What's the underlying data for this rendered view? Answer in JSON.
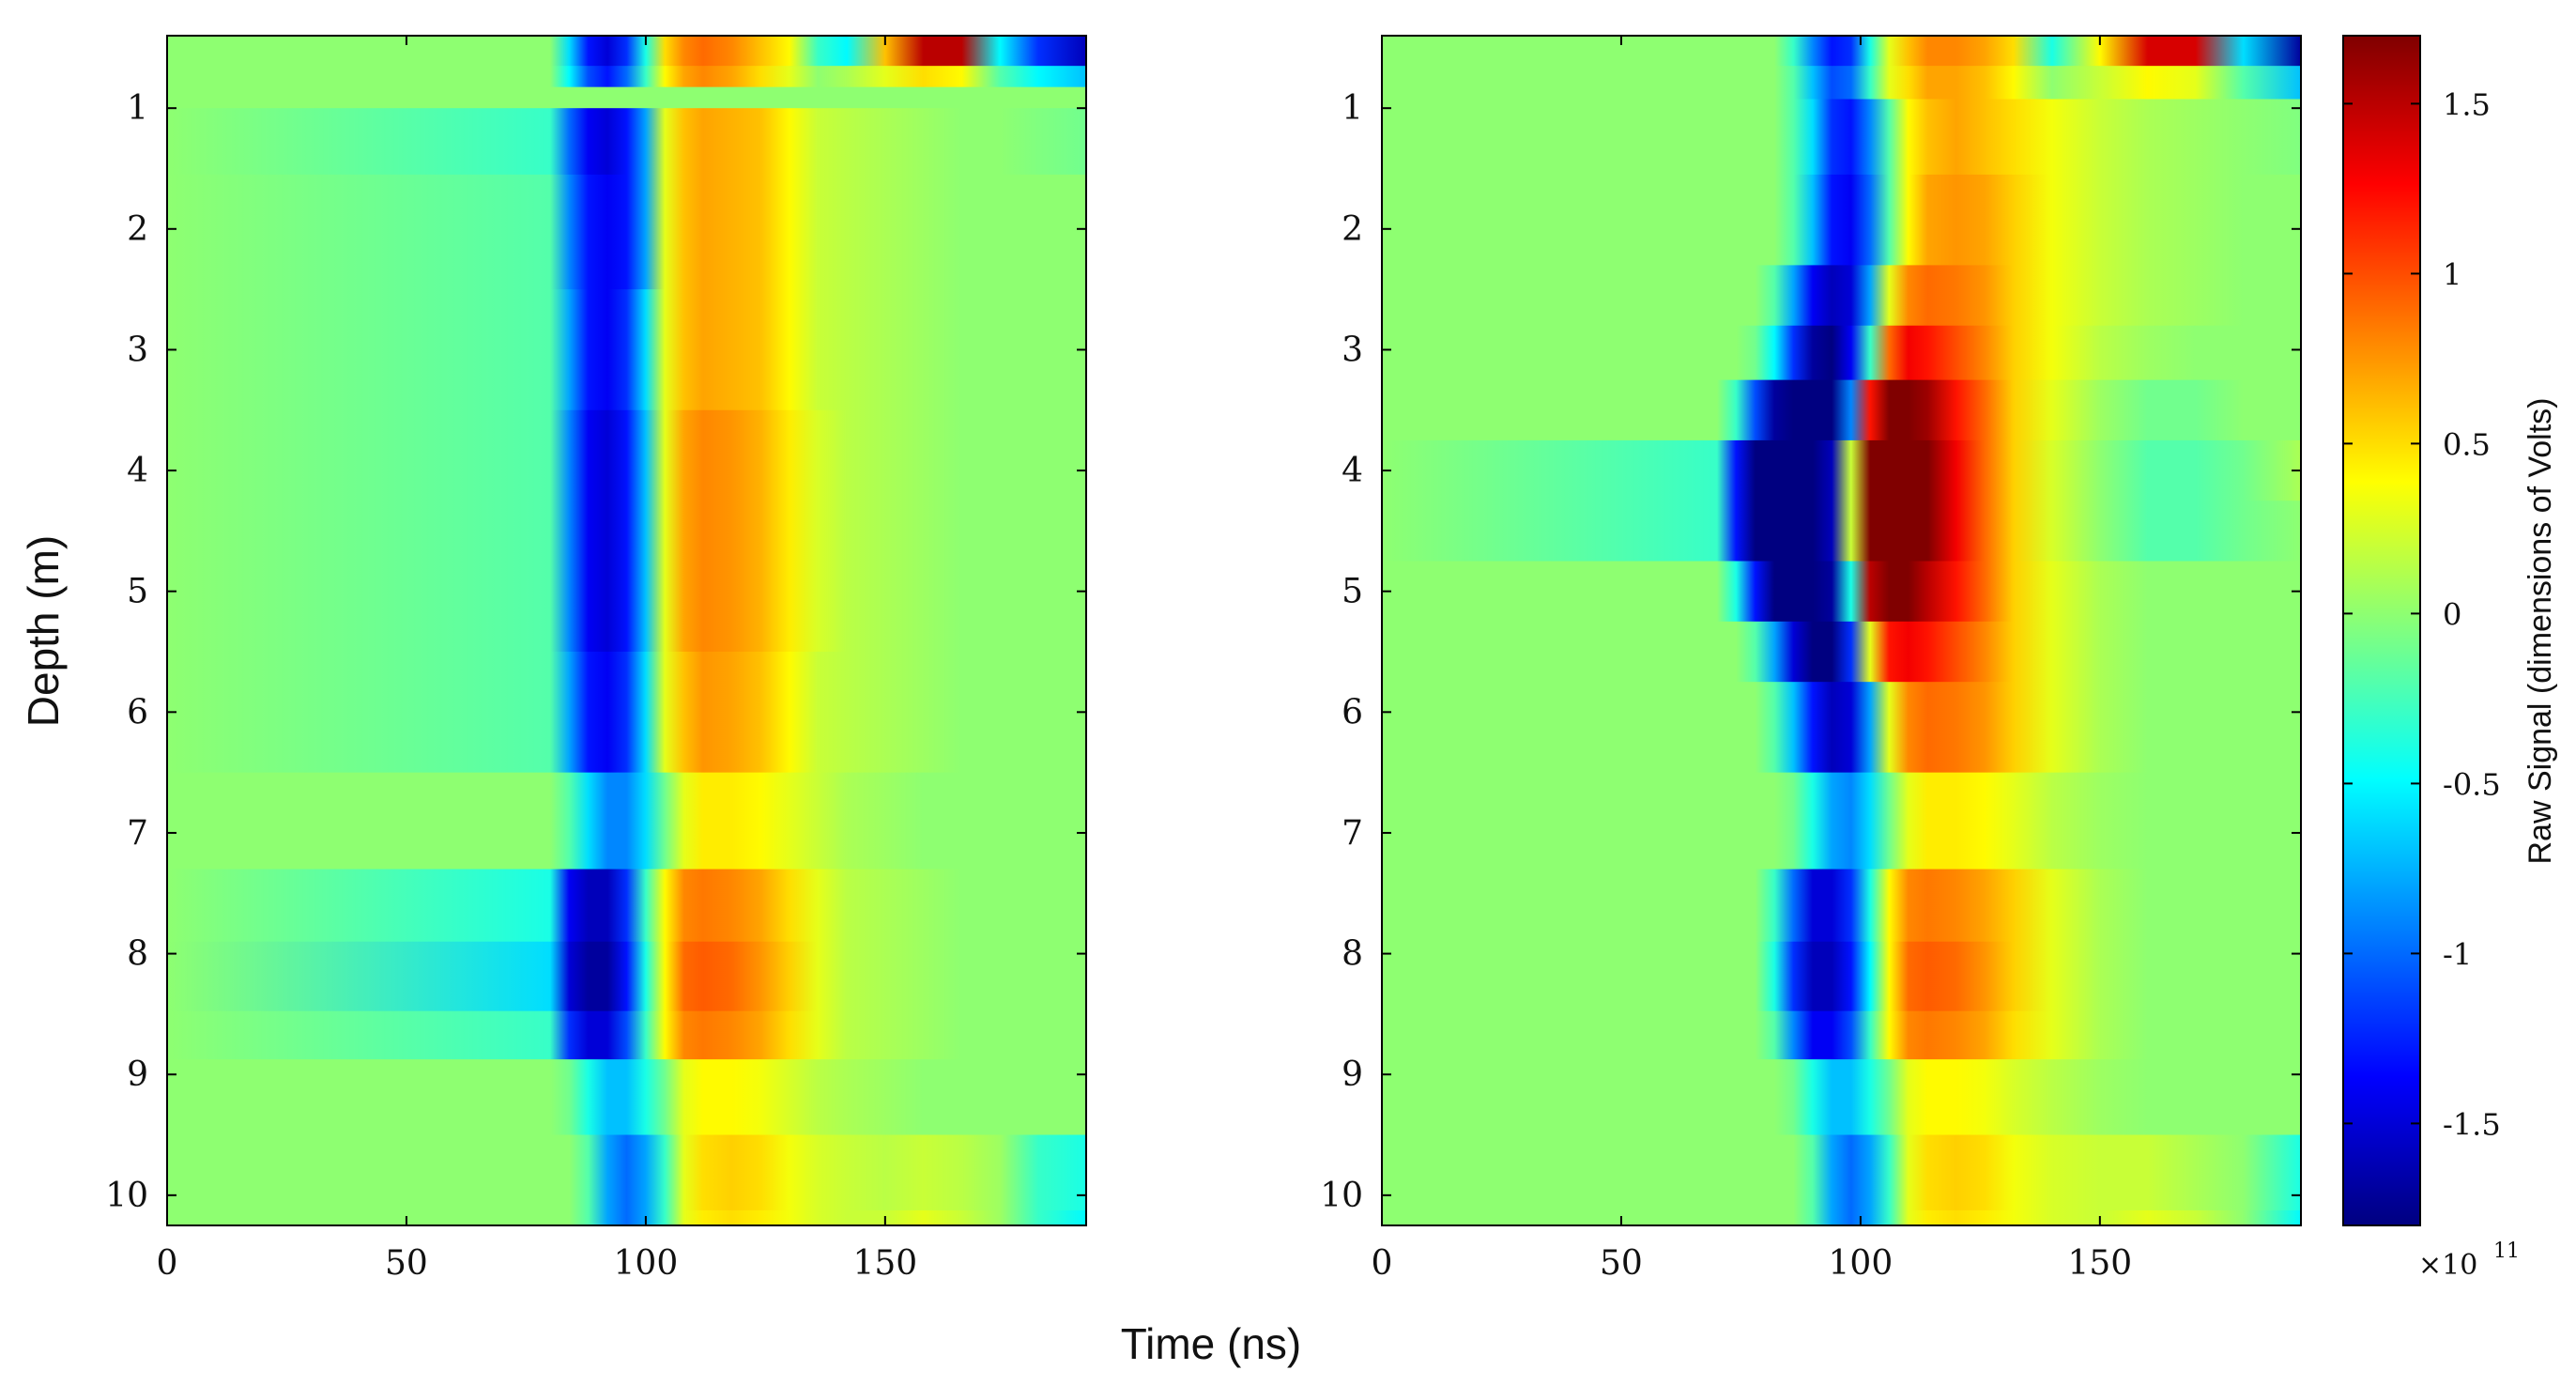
{
  "chart_data": [
    {
      "type": "heatmap",
      "panel": "left",
      "title": "",
      "xlabel": "Time (ns)",
      "ylabel": "Depth (m)",
      "xlim": [
        0,
        192
      ],
      "ylim": [
        0.4,
        10.25
      ],
      "y_reversed": true,
      "xticks": [
        0,
        50,
        100,
        150
      ],
      "yticks": [
        1,
        2,
        3,
        4,
        5,
        6,
        7,
        8,
        9,
        10
      ],
      "x_sampled": [
        0,
        80,
        84,
        88,
        92,
        96,
        100,
        104,
        108,
        112,
        118,
        124,
        130,
        136,
        142,
        150,
        158,
        166,
        174,
        182,
        192
      ],
      "depth_rows": [
        {
          "depth": 0.55,
          "values": [
            0,
            0,
            -0.6,
            -1.3,
            -1.5,
            -1.2,
            -0.4,
            0.5,
            0.8,
            0.9,
            0.8,
            0.6,
            0.4,
            -0.3,
            -0.5,
            0.6,
            1.5,
            1.5,
            -0.5,
            -1.2,
            -1.6
          ]
        },
        {
          "depth": 0.75,
          "values": [
            0,
            0,
            -0.5,
            -1.1,
            -1.3,
            -1.0,
            -0.3,
            0.4,
            0.7,
            0.8,
            0.7,
            0.5,
            0.3,
            0.0,
            0.1,
            0.3,
            0.5,
            0.4,
            -0.2,
            -0.5,
            -0.7
          ]
        },
        {
          "depth": 0.9,
          "values": [
            0,
            0,
            0,
            0,
            0,
            0,
            0,
            0,
            0,
            0,
            0,
            0,
            0,
            0,
            0,
            0,
            0,
            0,
            0,
            0,
            0
          ]
        },
        {
          "depth": 1.1,
          "values": [
            0,
            -0.3,
            -1.0,
            -1.4,
            -1.5,
            -1.3,
            -0.8,
            0.3,
            0.6,
            0.7,
            0.65,
            0.6,
            0.4,
            0.2,
            0.15,
            0.1,
            0.05,
            0,
            0,
            -0.05,
            -0.1
          ]
        },
        {
          "depth": 2.0,
          "values": [
            0,
            -0.2,
            -0.9,
            -1.3,
            -1.4,
            -1.3,
            -0.8,
            0.3,
            0.6,
            0.7,
            0.65,
            0.6,
            0.4,
            0.2,
            0.15,
            0.1,
            0.05,
            0,
            0,
            0,
            0
          ]
        },
        {
          "depth": 3.0,
          "values": [
            0,
            -0.2,
            -0.8,
            -1.3,
            -1.4,
            -1.2,
            -0.6,
            0.3,
            0.6,
            0.7,
            0.65,
            0.6,
            0.4,
            0.2,
            0.15,
            0.1,
            0.05,
            0,
            0,
            0,
            0
          ]
        },
        {
          "depth": 4.0,
          "values": [
            0,
            -0.2,
            -0.9,
            -1.4,
            -1.5,
            -1.3,
            -0.7,
            0.3,
            0.7,
            0.8,
            0.75,
            0.65,
            0.45,
            0.25,
            0.15,
            0.1,
            0.05,
            0,
            0,
            0,
            0
          ]
        },
        {
          "depth": 5.0,
          "values": [
            0,
            -0.2,
            -0.9,
            -1.4,
            -1.5,
            -1.3,
            -0.7,
            0.3,
            0.7,
            0.8,
            0.75,
            0.65,
            0.45,
            0.25,
            0.15,
            0.1,
            0.05,
            0,
            0,
            0,
            0
          ]
        },
        {
          "depth": 6.0,
          "values": [
            0,
            -0.2,
            -0.8,
            -1.3,
            -1.4,
            -1.2,
            -0.6,
            0.3,
            0.6,
            0.75,
            0.7,
            0.6,
            0.4,
            0.2,
            0.15,
            0.1,
            0.05,
            0,
            0,
            0,
            0
          ]
        },
        {
          "depth": 7.0,
          "values": [
            0,
            0,
            -0.2,
            -0.6,
            -0.9,
            -0.9,
            -0.6,
            -0.1,
            0.3,
            0.45,
            0.45,
            0.4,
            0.3,
            0.2,
            0.1,
            0.05,
            0,
            0,
            0,
            0,
            0
          ]
        },
        {
          "depth": 7.6,
          "values": [
            0,
            -0.4,
            -1.4,
            -1.6,
            -1.6,
            -1.2,
            -0.3,
            0.4,
            0.8,
            0.85,
            0.8,
            0.7,
            0.5,
            0.3,
            0.15,
            0.1,
            0.05,
            0,
            0,
            0,
            0
          ]
        },
        {
          "depth": 8.2,
          "values": [
            0,
            -0.6,
            -1.5,
            -1.7,
            -1.7,
            -1.3,
            -0.4,
            0.4,
            0.9,
            0.95,
            0.9,
            0.75,
            0.55,
            0.3,
            0.15,
            0.1,
            0.05,
            0,
            0,
            0,
            0
          ]
        },
        {
          "depth": 8.75,
          "values": [
            0,
            -0.3,
            -1.2,
            -1.5,
            -1.5,
            -1.1,
            -0.3,
            0.4,
            0.8,
            0.85,
            0.8,
            0.7,
            0.5,
            0.3,
            0.15,
            0.1,
            0.05,
            0,
            0,
            0,
            0
          ]
        },
        {
          "depth": 9.0,
          "values": [
            0,
            0,
            -0.1,
            -0.4,
            -0.7,
            -0.7,
            -0.4,
            -0.1,
            0.3,
            0.4,
            0.4,
            0.35,
            0.25,
            0.15,
            0.1,
            0.05,
            0,
            0,
            0,
            0,
            0
          ]
        },
        {
          "depth": 10.0,
          "values": [
            0,
            0,
            0,
            -0.2,
            -0.8,
            -1.0,
            -0.8,
            -0.3,
            0.3,
            0.5,
            0.55,
            0.5,
            0.35,
            0.25,
            0.2,
            0.15,
            0.2,
            0.15,
            0.05,
            -0.3,
            -0.4
          ]
        },
        {
          "depth": 10.25,
          "values": [
            0,
            0,
            0,
            -0.2,
            -0.8,
            -1.0,
            -0.8,
            -0.3,
            0.3,
            0.45,
            0.5,
            0.45,
            0.35,
            0.25,
            0.2,
            0.2,
            0.3,
            0.2,
            0.05,
            -0.3,
            -0.5
          ]
        }
      ]
    },
    {
      "type": "heatmap",
      "panel": "right",
      "title": "",
      "xlabel": "Time (ns)",
      "ylabel": "",
      "xlim": [
        0,
        192
      ],
      "ylim": [
        0.4,
        10.25
      ],
      "y_reversed": true,
      "xticks": [
        0,
        50,
        100,
        150
      ],
      "yticks": [
        1,
        2,
        3,
        4,
        5,
        6,
        7,
        8,
        9,
        10
      ],
      "x_sampled": [
        0,
        70,
        74,
        78,
        82,
        86,
        90,
        94,
        98,
        102,
        106,
        110,
        114,
        120,
        126,
        132,
        140,
        150,
        160,
        170,
        180,
        192
      ],
      "depth_rows": [
        {
          "depth": 0.55,
          "values": [
            0,
            0,
            0,
            0,
            0,
            -0.3,
            -0.9,
            -1.3,
            -1.2,
            -0.4,
            0.3,
            0.6,
            0.8,
            0.8,
            0.7,
            0.5,
            -0.4,
            0.4,
            1.4,
            1.4,
            -0.6,
            -1.7
          ]
        },
        {
          "depth": 0.75,
          "values": [
            0,
            0,
            0,
            0,
            0,
            -0.2,
            -0.7,
            -1.1,
            -1.0,
            -0.3,
            0.3,
            0.5,
            0.7,
            0.7,
            0.6,
            0.4,
            0.0,
            0.2,
            0.4,
            0.3,
            -0.2,
            -0.7
          ]
        },
        {
          "depth": 1.1,
          "values": [
            0,
            0,
            0,
            0,
            0,
            -0.2,
            -0.6,
            -1.2,
            -1.3,
            -0.9,
            -0.2,
            0.4,
            0.6,
            0.7,
            0.6,
            0.5,
            0.35,
            0.2,
            0.1,
            0.05,
            0,
            -0.05
          ]
        },
        {
          "depth": 2.0,
          "values": [
            0,
            0,
            0,
            0,
            0,
            -0.2,
            -0.7,
            -1.3,
            -1.4,
            -1.0,
            -0.2,
            0.4,
            0.7,
            0.75,
            0.7,
            0.55,
            0.35,
            0.2,
            0.1,
            0.05,
            0,
            0
          ]
        },
        {
          "depth": 2.6,
          "values": [
            0,
            0,
            0,
            0,
            -0.2,
            -0.8,
            -1.4,
            -1.6,
            -1.5,
            -0.8,
            0.3,
            0.8,
            0.9,
            0.85,
            0.75,
            0.55,
            0.35,
            0.2,
            0.1,
            0.05,
            0,
            0
          ]
        },
        {
          "depth": 3.0,
          "values": [
            0,
            0,
            0,
            -0.1,
            -0.5,
            -1.2,
            -1.7,
            -1.8,
            -1.4,
            -0.3,
            0.9,
            1.3,
            1.2,
            1.0,
            0.8,
            0.55,
            0.35,
            0.15,
            0.05,
            0,
            0,
            0
          ]
        },
        {
          "depth": 3.5,
          "values": [
            0,
            0,
            -0.3,
            -1.1,
            -1.7,
            -2.0,
            -2.0,
            -1.8,
            -0.9,
            1.2,
            1.8,
            1.8,
            1.6,
            1.2,
            0.9,
            0.55,
            0.3,
            0.05,
            -0.1,
            -0.1,
            0,
            0
          ]
        },
        {
          "depth": 4.0,
          "values": [
            0,
            -0.3,
            -1.3,
            -1.9,
            -2.0,
            -2.0,
            -2.0,
            -1.6,
            0.2,
            1.9,
            2.0,
            1.9,
            1.7,
            1.3,
            0.9,
            0.55,
            0.25,
            0.0,
            -0.2,
            -0.2,
            -0.1,
            0.1
          ]
        },
        {
          "depth": 4.5,
          "values": [
            0,
            -0.3,
            -1.3,
            -1.9,
            -2.0,
            -2.0,
            -2.0,
            -1.6,
            0.2,
            1.9,
            2.0,
            1.9,
            1.7,
            1.3,
            0.9,
            0.55,
            0.25,
            0.0,
            -0.2,
            -0.2,
            -0.1,
            0.0
          ]
        },
        {
          "depth": 5.0,
          "values": [
            0,
            0,
            -0.4,
            -1.3,
            -1.8,
            -2.0,
            -2.0,
            -1.7,
            -0.4,
            1.5,
            1.9,
            1.8,
            1.5,
            1.2,
            0.9,
            0.55,
            0.3,
            0.1,
            0,
            0,
            0,
            0
          ]
        },
        {
          "depth": 5.5,
          "values": [
            0,
            0,
            0,
            -0.2,
            -0.8,
            -1.5,
            -1.8,
            -1.8,
            -1.2,
            0.3,
            1.2,
            1.3,
            1.2,
            1.0,
            0.8,
            0.55,
            0.3,
            0.1,
            0,
            0,
            0,
            0
          ]
        },
        {
          "depth": 6.0,
          "values": [
            0,
            0,
            0,
            0,
            -0.2,
            -0.7,
            -1.3,
            -1.6,
            -1.5,
            -0.8,
            0.3,
            0.8,
            0.9,
            0.85,
            0.75,
            0.55,
            0.3,
            0.1,
            0,
            0,
            0,
            0
          ]
        },
        {
          "depth": 7.0,
          "values": [
            0,
            0,
            0,
            0,
            0,
            -0.1,
            -0.4,
            -0.8,
            -0.9,
            -0.6,
            -0.1,
            0.3,
            0.45,
            0.45,
            0.4,
            0.3,
            0.15,
            0.05,
            0,
            0,
            0,
            0
          ]
        },
        {
          "depth": 7.6,
          "values": [
            0,
            0,
            0,
            0,
            -0.3,
            -1.0,
            -1.5,
            -1.5,
            -1.2,
            -0.4,
            0.4,
            0.8,
            0.85,
            0.8,
            0.7,
            0.55,
            0.3,
            0.1,
            0,
            0,
            0,
            0
          ]
        },
        {
          "depth": 8.2,
          "values": [
            0,
            0,
            0,
            0,
            -0.4,
            -1.2,
            -1.6,
            -1.6,
            -1.3,
            -0.5,
            0.4,
            0.9,
            0.95,
            0.9,
            0.75,
            0.55,
            0.3,
            0.1,
            0,
            0,
            0,
            0
          ]
        },
        {
          "depth": 8.75,
          "values": [
            0,
            0,
            0,
            0,
            -0.2,
            -0.9,
            -1.4,
            -1.4,
            -1.1,
            -0.3,
            0.4,
            0.8,
            0.85,
            0.8,
            0.7,
            0.5,
            0.3,
            0.1,
            0,
            0,
            0,
            0
          ]
        },
        {
          "depth": 9.0,
          "values": [
            0,
            0,
            0,
            0,
            0,
            -0.1,
            -0.4,
            -0.7,
            -0.7,
            -0.4,
            -0.1,
            0.3,
            0.4,
            0.4,
            0.35,
            0.25,
            0.15,
            0.05,
            0,
            0,
            0,
            0
          ]
        },
        {
          "depth": 10.0,
          "values": [
            0,
            0,
            0,
            0,
            0,
            0,
            -0.2,
            -0.8,
            -1.0,
            -0.8,
            -0.3,
            0.3,
            0.5,
            0.55,
            0.5,
            0.35,
            0.25,
            0.2,
            0.2,
            0.1,
            0.0,
            -0.4
          ]
        },
        {
          "depth": 10.25,
          "values": [
            0,
            0,
            0,
            0,
            0,
            0,
            -0.2,
            -0.8,
            -1.0,
            -0.8,
            -0.3,
            0.3,
            0.45,
            0.5,
            0.45,
            0.35,
            0.25,
            0.2,
            0.3,
            0.2,
            0.0,
            -0.5
          ]
        }
      ]
    }
  ],
  "colorbar": {
    "label": "Raw Signal (dimensions of Volts)",
    "range": [
      -1.8,
      1.7
    ],
    "ticks": [
      1.5,
      1,
      0.5,
      0,
      -0.5,
      -1,
      -1.5
    ],
    "tick_labels": [
      "1.5",
      "1",
      "0.5",
      "0",
      "-0.5",
      "-1",
      "-1.5"
    ],
    "multiplier": "×10",
    "exponent": "11",
    "colormap": "jet"
  },
  "shared_xlabel": "Time (ns)"
}
